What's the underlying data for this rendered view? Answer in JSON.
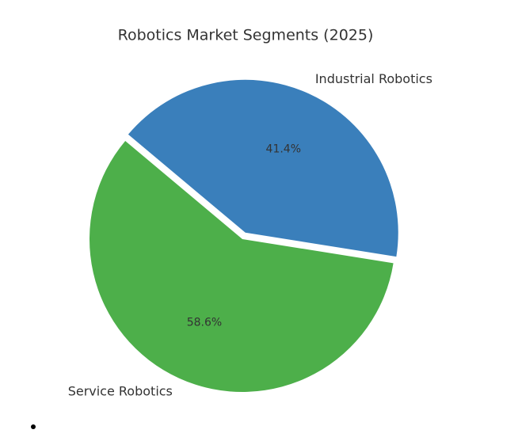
{
  "chart_data": {
    "type": "pie",
    "title": "Robotics Market Segments (2025)",
    "categories": [
      "Industrial Robotics",
      "Service Robotics"
    ],
    "values": [
      41.4,
      58.6
    ],
    "value_labels": [
      "41.4%",
      "58.6%"
    ],
    "colors": [
      "#3a7fbb",
      "#4daf4a"
    ]
  }
}
